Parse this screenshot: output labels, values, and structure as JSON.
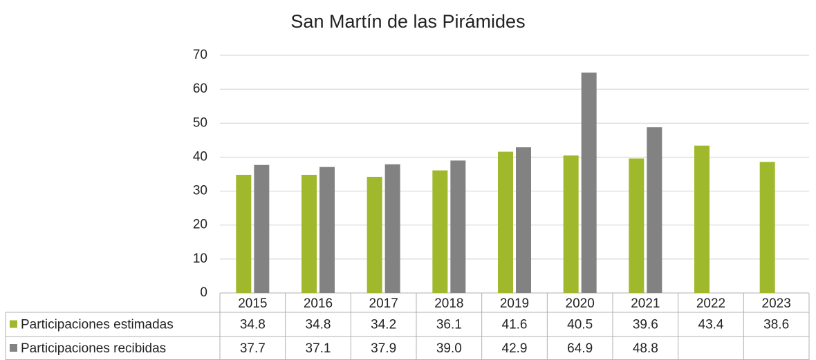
{
  "chart_data": {
    "type": "bar",
    "title": "San Martín de las Pirámides",
    "categories": [
      "2015",
      "2016",
      "2017",
      "2018",
      "2019",
      "2020",
      "2021",
      "2022",
      "2023"
    ],
    "series": [
      {
        "name": "Participaciones estimadas",
        "color": "#9fb82c",
        "values": [
          34.8,
          34.8,
          34.2,
          36.1,
          41.6,
          40.5,
          39.6,
          43.4,
          38.6
        ],
        "value_labels": [
          "34.8",
          "34.8",
          "34.2",
          "36.1",
          "41.6",
          "40.5",
          "39.6",
          "43.4",
          "38.6"
        ]
      },
      {
        "name": "Participaciones recibidas",
        "color": "#828282",
        "values": [
          37.7,
          37.1,
          37.9,
          39.0,
          42.9,
          64.9,
          48.8,
          null,
          null
        ],
        "value_labels": [
          "37.7",
          "37.1",
          "37.9",
          "39.0",
          "42.9",
          "64.9",
          "48.8",
          null,
          null
        ]
      }
    ],
    "ylim": [
      0,
      70
    ],
    "yticks": [
      0,
      10,
      20,
      30,
      40,
      50,
      60,
      70
    ],
    "grid": true
  }
}
